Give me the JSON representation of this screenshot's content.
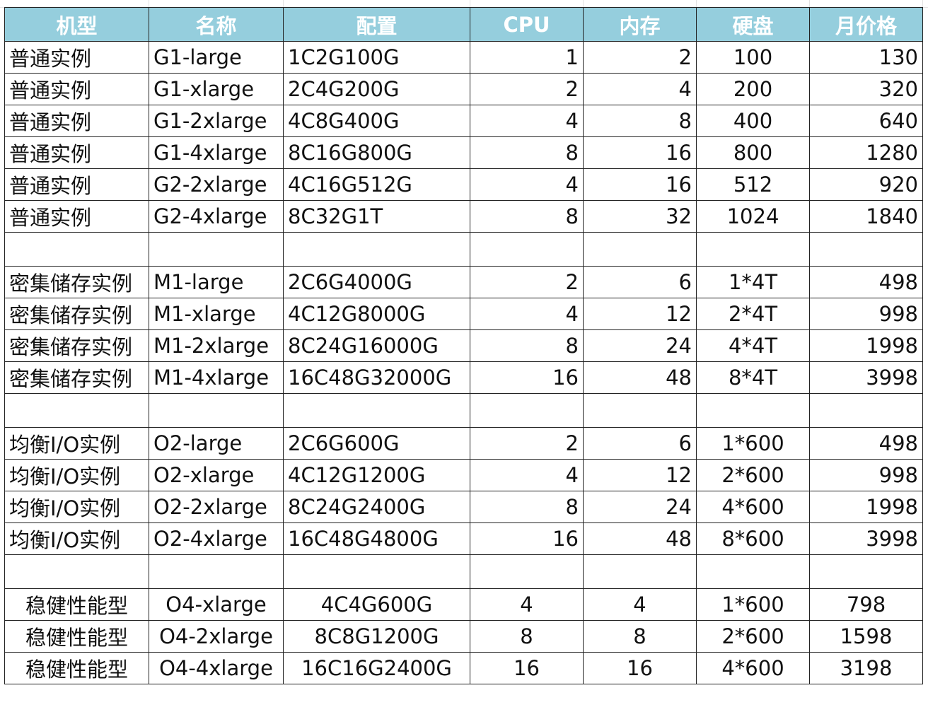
{
  "headers": [
    "机型",
    "名称",
    "配置",
    "CPU",
    "内存",
    "硬盘",
    "月价格"
  ],
  "groups": [
    {
      "rows": [
        {
          "type": "普通实例",
          "name": "G1-large",
          "config": "1C2G100G",
          "cpu": "1",
          "memory": "2",
          "disk": "100",
          "price": "130"
        },
        {
          "type": "普通实例",
          "name": "G1-xlarge",
          "config": "2C4G200G",
          "cpu": "2",
          "memory": "4",
          "disk": "200",
          "price": "320"
        },
        {
          "type": "普通实例",
          "name": "G1-2xlarge",
          "config": "4C8G400G",
          "cpu": "4",
          "memory": "8",
          "disk": "400",
          "price": "640"
        },
        {
          "type": "普通实例",
          "name": "G1-4xlarge",
          "config": "8C16G800G",
          "cpu": "8",
          "memory": "16",
          "disk": "800",
          "price": "1280"
        },
        {
          "type": "普通实例",
          "name": "G2-2xlarge",
          "config": "4C16G512G",
          "cpu": "4",
          "memory": "16",
          "disk": "512",
          "price": "920"
        },
        {
          "type": "普通实例",
          "name": "G2-4xlarge",
          "config": "8C32G1T",
          "cpu": "8",
          "memory": "32",
          "disk": "1024",
          "price": "1840"
        }
      ]
    },
    {
      "rows": [
        {
          "type": "密集储存实例",
          "name": "M1-large",
          "config": "2C6G4000G",
          "cpu": "2",
          "memory": "6",
          "disk": "1*4T",
          "price": "498"
        },
        {
          "type": "密集储存实例",
          "name": "M1-xlarge",
          "config": "4C12G8000G",
          "cpu": "4",
          "memory": "12",
          "disk": "2*4T",
          "price": "998"
        },
        {
          "type": "密集储存实例",
          "name": "M1-2xlarge",
          "config": "8C24G16000G",
          "cpu": "8",
          "memory": "24",
          "disk": "4*4T",
          "price": "1998"
        },
        {
          "type": "密集储存实例",
          "name": "M1-4xlarge",
          "config": "16C48G32000G",
          "cpu": "16",
          "memory": "48",
          "disk": "8*4T",
          "price": "3998"
        }
      ]
    },
    {
      "rows": [
        {
          "type": "均衡I/O实例",
          "name": "O2-large",
          "config": "2C6G600G",
          "cpu": "2",
          "memory": "6",
          "disk": "1*600",
          "price": "498"
        },
        {
          "type": "均衡I/O实例",
          "name": "O2-xlarge",
          "config": "4C12G1200G",
          "cpu": "4",
          "memory": "12",
          "disk": "2*600",
          "price": "998"
        },
        {
          "type": "均衡I/O实例",
          "name": "O2-2xlarge",
          "config": "8C24G2400G",
          "cpu": "8",
          "memory": "24",
          "disk": "4*600",
          "price": "1998"
        },
        {
          "type": "均衡I/O实例",
          "name": "O2-4xlarge",
          "config": "16C48G4800G",
          "cpu": "16",
          "memory": "48",
          "disk": "8*600",
          "price": "3998"
        }
      ]
    },
    {
      "centered": true,
      "rows": [
        {
          "type": "稳健性能型",
          "name": "O4-xlarge",
          "config": "4C4G600G",
          "cpu": "4",
          "memory": "4",
          "disk": "1*600",
          "price": "798"
        },
        {
          "type": "稳健性能型",
          "name": "O4-2xlarge",
          "config": "8C8G1200G",
          "cpu": "8",
          "memory": "8",
          "disk": "2*600",
          "price": "1598"
        },
        {
          "type": "稳健性能型",
          "name": "O4-4xlarge",
          "config": "16C16G2400G",
          "cpu": "16",
          "memory": "16",
          "disk": "4*600",
          "price": "3198"
        }
      ]
    }
  ]
}
